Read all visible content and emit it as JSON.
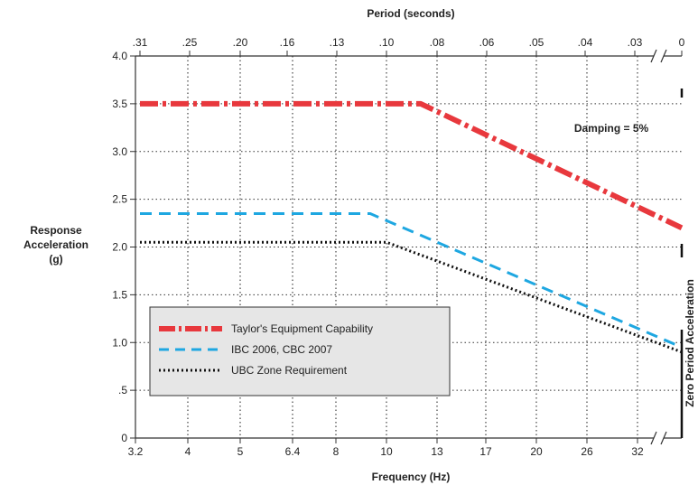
{
  "chart_data": {
    "type": "line",
    "top_axis": {
      "title": "Period (seconds)",
      "tick_labels": [
        ".31",
        ".25",
        ".20",
        ".16",
        ".13",
        ".10",
        ".08",
        ".06",
        ".05",
        ".04",
        ".03",
        "0"
      ]
    },
    "x_axis": {
      "title": "Frequency (Hz)",
      "tick_labels": [
        "3.2",
        "4",
        "5",
        "6.4",
        "8",
        "10",
        "13",
        "17",
        "20",
        "26",
        "32"
      ]
    },
    "y_axis": {
      "title_lines": [
        "Response",
        "Acceleration",
        "(g)"
      ],
      "ylim": [
        0,
        4.0
      ],
      "ticks": [
        0,
        0.5,
        1.0,
        1.5,
        2.0,
        2.5,
        3.0,
        3.5,
        4.0
      ],
      "tick_labels": [
        "0",
        ".5",
        "1.0",
        "1.5",
        "2.0",
        "2.5",
        "3.0",
        "3.5",
        "4.0"
      ]
    },
    "right_label": "Zero Period Acceleration",
    "annotation": "Damping = 5%",
    "grid": true,
    "legend_position": "bottom-left",
    "series": [
      {
        "name": "Taylor's Equipment Capability",
        "color": "#e8383d",
        "style": "dash-dot",
        "points": [
          {
            "x": "3.2",
            "y": 3.5
          },
          {
            "x": "12",
            "y": 3.5
          },
          {
            "x": "ZPA",
            "y": 2.2
          }
        ]
      },
      {
        "name": "IBC 2006, CBC 2007",
        "color": "#1ea7e1",
        "style": "dashed",
        "points": [
          {
            "x": "3.2",
            "y": 2.35
          },
          {
            "x": "9.5",
            "y": 2.35
          },
          {
            "x": "ZPA",
            "y": 0.95
          }
        ]
      },
      {
        "name": "UBC Zone Requirement",
        "color": "#111111",
        "style": "dotted",
        "points": [
          {
            "x": "3.2",
            "y": 2.05
          },
          {
            "x": "10",
            "y": 2.05
          },
          {
            "x": "ZPA",
            "y": 0.9
          }
        ]
      }
    ]
  }
}
